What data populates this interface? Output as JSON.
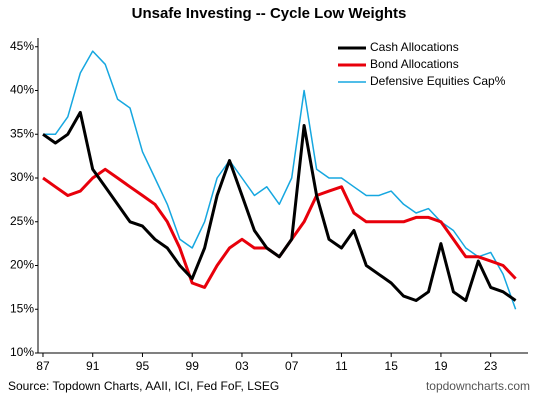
{
  "chart_data": {
    "type": "line",
    "title": "Unsafe Investing -- Cycle Low Weights",
    "source": "Source: Topdown Charts, AAII, ICI, Fed FoF, LSEG",
    "watermark": "topdowncharts.com",
    "legend": "upper right",
    "grid": false,
    "x": [
      1987,
      1988,
      1989,
      1990,
      1991,
      1992,
      1993,
      1994,
      1995,
      1996,
      1997,
      1998,
      1999,
      2000,
      2001,
      2002,
      2003,
      2004,
      2005,
      2006,
      2007,
      2008,
      2009,
      2010,
      2011,
      2012,
      2013,
      2014,
      2015,
      2016,
      2017,
      2018,
      2019,
      2020,
      2021,
      2022,
      2023,
      2024,
      2025
    ],
    "xlim": [
      1986.6,
      2026
    ],
    "xticks": [
      {
        "value": 1987,
        "label": "87"
      },
      {
        "value": 1991,
        "label": "91"
      },
      {
        "value": 1995,
        "label": "95"
      },
      {
        "value": 1999,
        "label": "99"
      },
      {
        "value": 2003,
        "label": "03"
      },
      {
        "value": 2007,
        "label": "07"
      },
      {
        "value": 2011,
        "label": "11"
      },
      {
        "value": 2015,
        "label": "15"
      },
      {
        "value": 2019,
        "label": "19"
      },
      {
        "value": 2023,
        "label": "23"
      }
    ],
    "ylim": [
      10,
      46
    ],
    "yticks": [
      {
        "value": 10,
        "label": "10%"
      },
      {
        "value": 15,
        "label": "15%"
      },
      {
        "value": 20,
        "label": "20%"
      },
      {
        "value": 25,
        "label": "25%"
      },
      {
        "value": 30,
        "label": "30%"
      },
      {
        "value": 35,
        "label": "35%"
      },
      {
        "value": 40,
        "label": "40%"
      },
      {
        "value": 45,
        "label": "45%"
      }
    ],
    "series": [
      {
        "name": "Cash Allocations",
        "color": "#000000",
        "width": 3,
        "values": [
          35,
          34,
          35,
          37.5,
          31,
          29,
          27,
          25,
          24.5,
          23,
          22,
          20,
          18.5,
          22,
          28,
          32,
          28,
          24,
          22,
          21,
          23,
          36,
          28,
          23,
          22,
          24,
          20,
          19,
          18,
          16.5,
          16,
          17,
          22.5,
          17,
          16,
          20.5,
          17.5,
          17,
          16
        ]
      },
      {
        "name": "Bond Allocations",
        "color": "#e8000b",
        "width": 3,
        "values": [
          30,
          29,
          28,
          28.5,
          30,
          31,
          30,
          29,
          28,
          27,
          25,
          22,
          18,
          17.5,
          20,
          22,
          23,
          22,
          22,
          21,
          23,
          25,
          28,
          28.5,
          29,
          26,
          25,
          25,
          25,
          25,
          25.5,
          25.5,
          25,
          23,
          21,
          21,
          20.5,
          20,
          18.5
        ]
      },
      {
        "name": "Defensive Equities Cap%",
        "color": "#16a7e0",
        "width": 1.5,
        "values": [
          35,
          35,
          37,
          42,
          44.5,
          43,
          39,
          38,
          33,
          30,
          27,
          23,
          22,
          25,
          30,
          32,
          30,
          28,
          29,
          27,
          30,
          40,
          31,
          30,
          30,
          29,
          28,
          28,
          28.5,
          27,
          26,
          26.5,
          25,
          24,
          22,
          21,
          21.5,
          19,
          15
        ]
      }
    ]
  }
}
